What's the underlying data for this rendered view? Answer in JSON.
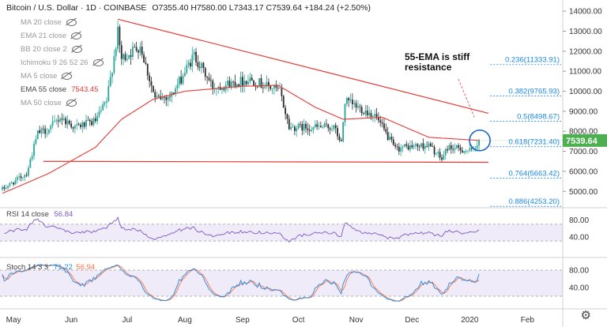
{
  "header": {
    "title": "Bitcoin / U.S. Dollar · 1D · COINBASE",
    "ohlc": "O7355.40 H7580.00 L7343.17 C7539.64 +184.24 (+2.50%)"
  },
  "indicators": [
    {
      "label": "MA 20 close",
      "value": "",
      "hidden": true
    },
    {
      "label": "EMA 21 close",
      "value": "",
      "hidden": true
    },
    {
      "label": "BB 20 close 2",
      "value": "",
      "hidden": true
    },
    {
      "label": "Ichimoku 9 26 52 26",
      "value": "",
      "hidden": true
    },
    {
      "label": "MA 5 close",
      "value": "",
      "hidden": true
    },
    {
      "label": "EMA 55 close",
      "value": "7543.45",
      "hidden": false
    },
    {
      "label": "MA 50 close",
      "value": "",
      "hidden": true
    }
  ],
  "rsi": {
    "label": "RSI 14 close",
    "value": "56.84"
  },
  "stoch": {
    "label": "Stoch 14 3 3",
    "k": "71.22",
    "d": "56.94"
  },
  "annotation": "55-EMA is stiff\nresistance",
  "colors": {
    "up": "#26a69a",
    "down": "#2b2b2b",
    "ema": "#e53935",
    "trend": "#e53935",
    "fib": "#1e88e5",
    "rsi": "#7e57c2",
    "stoch_k": "#1e88e5",
    "stoch_d": "#ff7043",
    "price_tag": "#4caf50"
  },
  "chart_data": {
    "type": "candlestick",
    "x_ticks": [
      "May",
      "Jun",
      "Jul",
      "Aug",
      "Sep",
      "Oct",
      "Nov",
      "Dec",
      "2020",
      "Feb"
    ],
    "y_ticks": [
      "14000.00",
      "13000.00",
      "12000.00",
      "11000.00",
      "10000.00",
      "9000.00",
      "8000.00",
      "7000.00",
      "6000.00",
      "5000.00"
    ],
    "ylim": [
      4300,
      14400
    ],
    "last_price": "7539.64",
    "fib_levels": [
      {
        "label": "0.236(11333.91)",
        "value": 11333.91
      },
      {
        "label": "0.382(9765.93)",
        "value": 9765.93
      },
      {
        "label": "0.5(8498.67)",
        "value": 8498.67
      },
      {
        "label": "0.618(7231.40)",
        "value": 7231.4
      },
      {
        "label": "0.764(5663.42)",
        "value": 5663.42
      },
      {
        "label": "0.886(4253.20)",
        "value": 4253.2
      }
    ],
    "close_anchors": [
      [
        "2019-04-25",
        5100
      ],
      [
        "2019-05-08",
        5900
      ],
      [
        "2019-05-14",
        7900
      ],
      [
        "2019-05-20",
        8100
      ],
      [
        "2019-05-26",
        8700
      ],
      [
        "2019-06-03",
        8200
      ],
      [
        "2019-06-14",
        8500
      ],
      [
        "2019-06-20",
        9500
      ],
      [
        "2019-06-26",
        12900
      ],
      [
        "2019-06-28",
        11600
      ],
      [
        "2019-07-08",
        12300
      ],
      [
        "2019-07-16",
        9600
      ],
      [
        "2019-07-25",
        9800
      ],
      [
        "2019-08-06",
        11800
      ],
      [
        "2019-08-16",
        10200
      ],
      [
        "2019-09-05",
        10600
      ],
      [
        "2019-09-21",
        10000
      ],
      [
        "2019-09-26",
        8200
      ],
      [
        "2019-10-20",
        8200
      ],
      [
        "2019-10-24",
        7400
      ],
      [
        "2019-10-26",
        9500
      ],
      [
        "2019-11-11",
        8800
      ],
      [
        "2019-11-22",
        7100
      ],
      [
        "2019-11-26",
        7200
      ],
      [
        "2019-12-10",
        7300
      ],
      [
        "2019-12-17",
        6600
      ],
      [
        "2019-12-20",
        7200
      ],
      [
        "2020-01-02",
        7000
      ],
      [
        "2020-01-06",
        7539.64
      ]
    ],
    "ema55_anchors": [
      [
        "2019-04-25",
        4900
      ],
      [
        "2019-05-20",
        5900
      ],
      [
        "2019-06-14",
        7200
      ],
      [
        "2019-06-28",
        8600
      ],
      [
        "2019-07-15",
        9600
      ],
      [
        "2019-08-01",
        10000
      ],
      [
        "2019-09-01",
        10250
      ],
      [
        "2019-09-20",
        10300
      ],
      [
        "2019-10-10",
        9200
      ],
      [
        "2019-10-25",
        8600
      ],
      [
        "2019-11-15",
        8700
      ],
      [
        "2019-12-10",
        7700
      ],
      [
        "2020-01-06",
        7543.45
      ]
    ],
    "trendlines": [
      {
        "from": [
          "2019-06-26",
          13600
        ],
        "to": [
          "2020-01-11",
          8900
        ]
      },
      {
        "from": [
          "2019-05-17",
          6500
        ],
        "to": [
          "2020-01-11",
          6450
        ]
      }
    ],
    "rsi_ticks": [
      "80.00",
      "40.00"
    ],
    "rsi_ylim": [
      0,
      100
    ],
    "rsi_band": [
      30,
      70
    ],
    "stoch_ticks": [
      "80.00",
      "40.00"
    ],
    "stoch_ylim": [
      0,
      100
    ],
    "stoch_band": [
      20,
      80
    ]
  }
}
